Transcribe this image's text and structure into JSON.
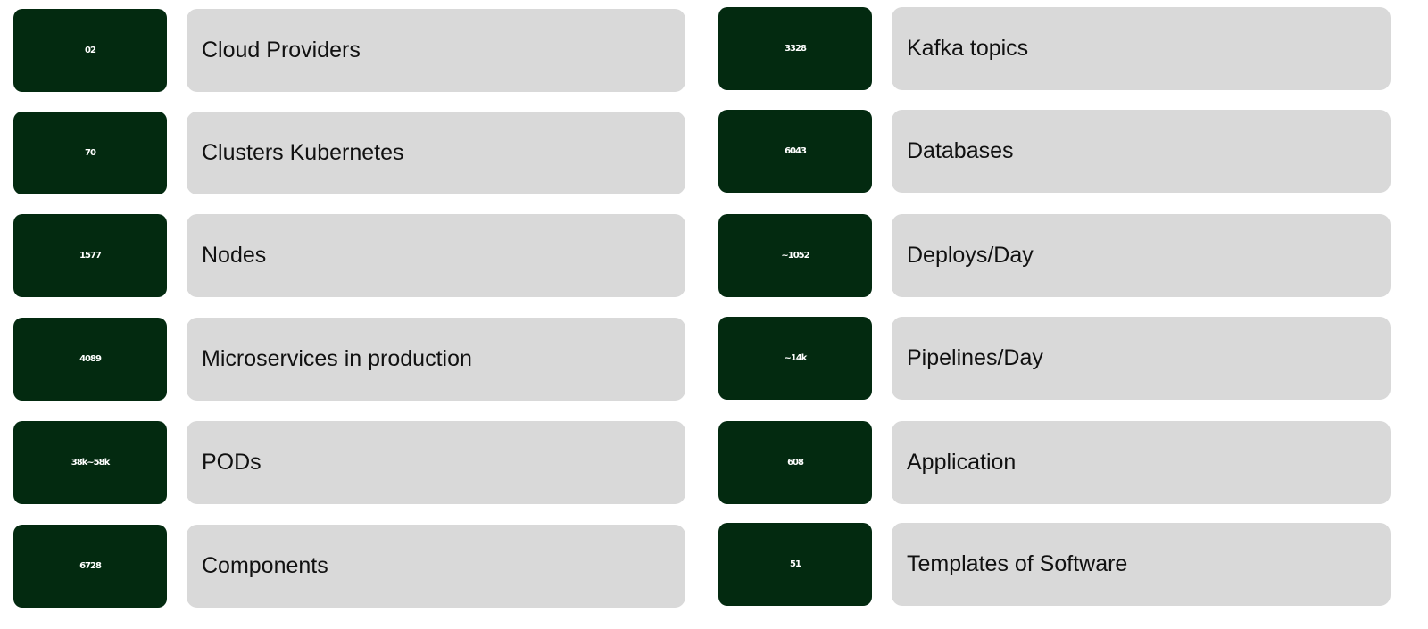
{
  "columns": [
    [
      {
        "value": "02",
        "label": "Cloud Providers"
      },
      {
        "value": "70",
        "label": "Clusters Kubernetes"
      },
      {
        "value": "1577",
        "label": "Nodes"
      },
      {
        "value": "4089",
        "label": "Microservices in production"
      },
      {
        "value": "38k~58k",
        "label": "PODs"
      },
      {
        "value": "6728",
        "label": "Components"
      }
    ],
    [
      {
        "value": "3328",
        "label": "Kafka topics"
      },
      {
        "value": "6043",
        "label": "Databases"
      },
      {
        "value": "~1052",
        "label": "Deploys/Day"
      },
      {
        "value": "~14k",
        "label": "Pipelines/Day"
      },
      {
        "value": "608",
        "label": "Application"
      },
      {
        "value": "51",
        "label": "Templates of Software"
      }
    ]
  ]
}
